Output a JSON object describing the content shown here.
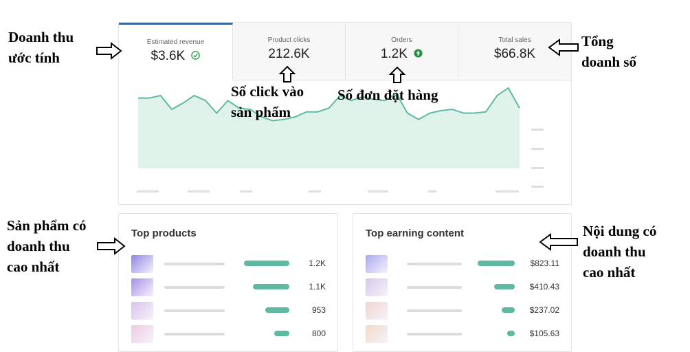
{
  "metrics": [
    {
      "label": "Estimated revenue",
      "value": "$3.6K",
      "badge": "check-circle-icon"
    },
    {
      "label": "Product clicks",
      "value": "212.6K",
      "badge": ""
    },
    {
      "label": "Orders",
      "value": "1.2K",
      "badge": "up-arrow-icon"
    },
    {
      "label": "Total sales",
      "value": "$66.8K",
      "badge": ""
    }
  ],
  "annotations": {
    "revenue": [
      "Doanh thu",
      "ước tính"
    ],
    "total_sales": [
      "Tổng",
      "doanh số"
    ],
    "clicks": [
      "Số click vào",
      "sản phẩm"
    ],
    "orders": [
      "Số đơn đặt hàng"
    ],
    "top_products": [
      "Sản phẩm có",
      "doanh thu",
      "cao nhất"
    ],
    "top_content": [
      "Nội dung có",
      "doanh thu",
      "cao nhất"
    ]
  },
  "chart_data": {
    "type": "area",
    "title": "",
    "xlabel": "",
    "ylabel": "",
    "series": [
      {
        "values": [
          56,
          56,
          58,
          47,
          52,
          58,
          54,
          44,
          54,
          48,
          47,
          41,
          38,
          39,
          41,
          45,
          45,
          48,
          58,
          54,
          57,
          55,
          54,
          60,
          44,
          39,
          44,
          46,
          47,
          44,
          44,
          45,
          58,
          64,
          48
        ]
      }
    ],
    "grid": false,
    "color": "#5fb8a2",
    "fill": "#dff2ea"
  },
  "top_products": {
    "title": "Top products",
    "rows": [
      {
        "value": "1.2K",
        "share": 1.0,
        "thumb": "#8e86e6"
      },
      {
        "value": "1.1K",
        "share": 0.8,
        "thumb": "#a592e6"
      },
      {
        "value": "953",
        "share": 0.53,
        "thumb": "#d8c2ea"
      },
      {
        "value": "800",
        "share": 0.33,
        "thumb": "#eccbe0"
      }
    ]
  },
  "top_content": {
    "title": "Top earning content",
    "rows": [
      {
        "value": "$823.11",
        "share": 1.0,
        "thumb": "#a8a9ef"
      },
      {
        "value": "$410.43",
        "share": 0.55,
        "thumb": "#d8c7e8"
      },
      {
        "value": "$237.02",
        "share": 0.35,
        "thumb": "#f0d5cf"
      },
      {
        "value": "$105.63",
        "share": 0.2,
        "thumb": "#f2dac8"
      }
    ]
  }
}
